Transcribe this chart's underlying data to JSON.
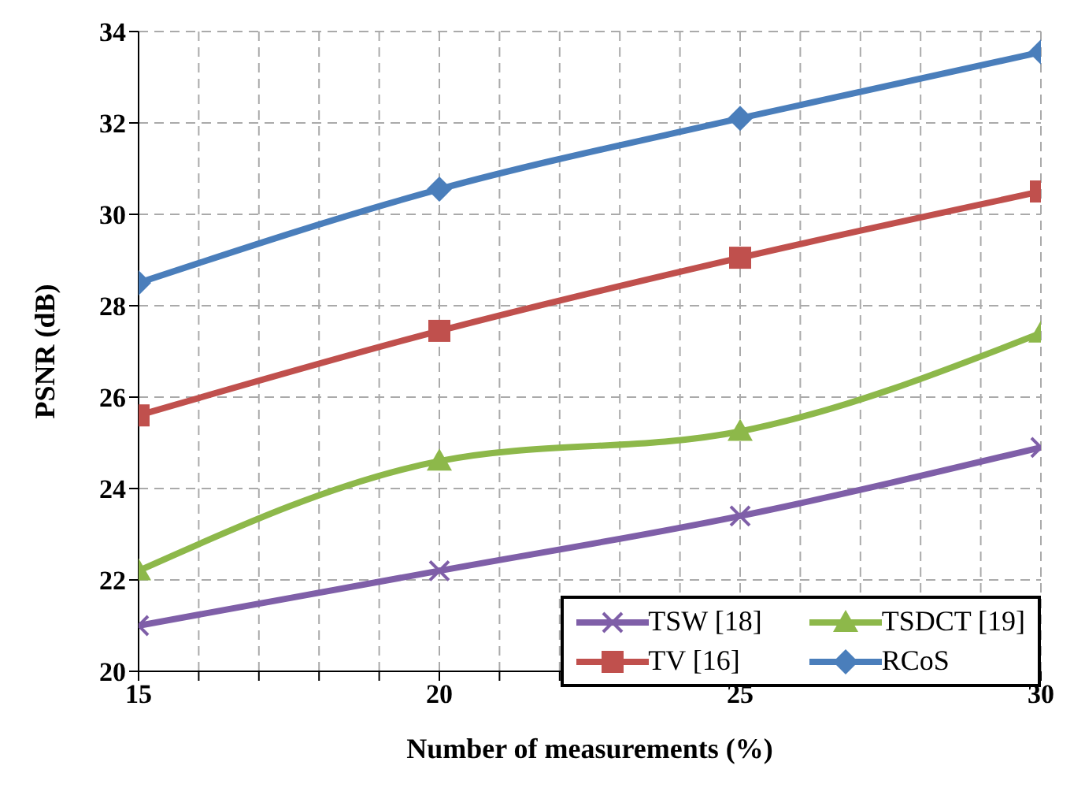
{
  "chart_data": {
    "type": "line",
    "xlabel": "Number of measurements (%)",
    "ylabel": "PSNR (dB)",
    "x": [
      15,
      20,
      25,
      30
    ],
    "xlim": [
      15,
      30
    ],
    "xticks": [
      15,
      {
        "value": 16,
        "label": null
      },
      {
        "value": 17,
        "label": null
      },
      {
        "value": 18,
        "label": null
      },
      {
        "value": 19,
        "label": null
      },
      20,
      {
        "value": 21,
        "label": null
      },
      {
        "value": 22,
        "label": null
      },
      {
        "value": 23,
        "label": null
      },
      {
        "value": 24,
        "label": null
      },
      25,
      {
        "value": 26,
        "label": null
      },
      {
        "value": 27,
        "label": null
      },
      {
        "value": 28,
        "label": null
      },
      {
        "value": 29,
        "label": null
      },
      30
    ],
    "ylim": [
      20,
      34
    ],
    "yticks": [
      20,
      22,
      24,
      26,
      28,
      30,
      32,
      34
    ],
    "grid": true,
    "legend": "bottom right",
    "line_style": "solid",
    "series": [
      {
        "name": "TSW [18]",
        "color": "#7f5fa8",
        "marker": "cross",
        "values": [
          21.0,
          22.2,
          23.4,
          24.9
        ]
      },
      {
        "name": "TSDCT [19]",
        "color": "#8db84a",
        "marker": "triangle",
        "values": [
          22.2,
          24.6,
          25.25,
          27.4
        ]
      },
      {
        "name": "TV [16]",
        "color": "#c0504d",
        "marker": "square",
        "values": [
          25.6,
          27.45,
          29.05,
          30.5
        ]
      },
      {
        "name": "RCoS",
        "color": "#4a7ebb",
        "marker": "diamond",
        "values": [
          28.5,
          30.55,
          32.1,
          33.55
        ]
      }
    ]
  }
}
